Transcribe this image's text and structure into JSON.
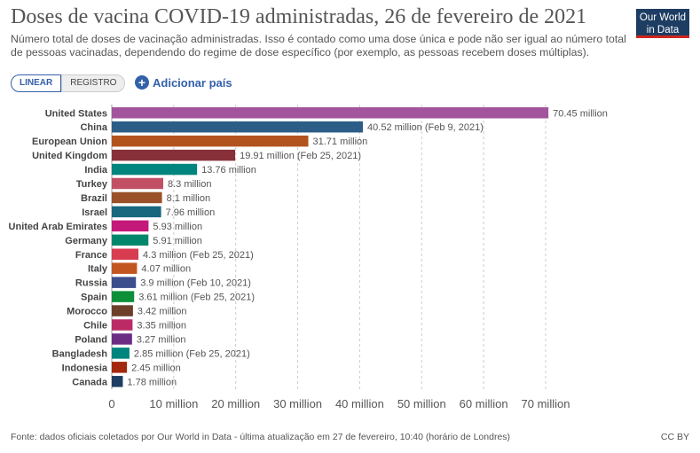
{
  "header": {
    "title": "Doses de vacina COVID-19 administradas, 26 de fevereiro de 2021",
    "subtitle": "Número total de doses de vacinação administradas. Isso é contado como uma dose única e pode não ser igual ao número total de pessoas vacinadas, dependendo do regime de dose específico (por exemplo, as pessoas recebem doses múltiplas).",
    "logo_line1": "Our World",
    "logo_line2": "in Data"
  },
  "controls": {
    "linear_label": "LINEAR",
    "log_label": "REGISTRO",
    "add_country_label": "Adicionar país"
  },
  "footer": {
    "source": "Fonte: dados oficiais coletados por Our World in Data - última atualização em 27 de fevereiro, 10:40 (horário de Londres)",
    "license": "CC BY"
  },
  "chart_data": {
    "type": "bar",
    "orientation": "horizontal",
    "title": "Doses de vacina COVID-19 administradas, 26 de fevereiro de 2021",
    "xlim": [
      0,
      70000000
    ],
    "x_ticks": [
      0,
      10000000,
      20000000,
      30000000,
      40000000,
      50000000,
      60000000,
      70000000
    ],
    "x_tick_labels": [
      "0",
      "10 million",
      "20 million",
      "30 million",
      "40 million",
      "50 million",
      "60 million",
      "70 million"
    ],
    "grid": true,
    "scale": "linear",
    "categories": [
      "United States",
      "China",
      "European Union",
      "United Kingdom",
      "India",
      "Turkey",
      "Brazil",
      "Israel",
      "United Arab Emirates",
      "Germany",
      "France",
      "Italy",
      "Russia",
      "Spain",
      "Morocco",
      "Chile",
      "Poland",
      "Bangladesh",
      "Indonesia",
      "Canada"
    ],
    "values": [
      70450000,
      40520000,
      31710000,
      19910000,
      13760000,
      8300000,
      8100000,
      7960000,
      5930000,
      5910000,
      4300000,
      4070000,
      3900000,
      3610000,
      3420000,
      3350000,
      3270000,
      2850000,
      2450000,
      1780000
    ],
    "data_labels": [
      "70.45 million",
      "40.52 million (Feb 9, 2021)",
      "31.71 million",
      "19.91 million (Feb 25, 2021)",
      "13.76 million",
      "8.3 million",
      "8.1 million",
      "7.96 million",
      "5.93 million",
      "5.91 million",
      "4.3 million (Feb 25, 2021)",
      "4.07 million",
      "3.9 million (Feb 10, 2021)",
      "3.61 million (Feb 25, 2021)",
      "3.42 million",
      "3.35 million",
      "3.27 million",
      "2.85 million (Feb 25, 2021)",
      "2.45 million",
      "1.78 million"
    ],
    "colors": [
      "#a2559c",
      "#2c5d86",
      "#b2531e",
      "#883039",
      "#00847e",
      "#c15065",
      "#9a5129",
      "#18677e",
      "#c4187b",
      "#00876b",
      "#d73c50",
      "#c25621",
      "#3c4e8c",
      "#0d8f3a",
      "#6d3e29",
      "#bc2a66",
      "#6b2d84",
      "#00847e",
      "#a3280d",
      "#1d3d63"
    ]
  }
}
